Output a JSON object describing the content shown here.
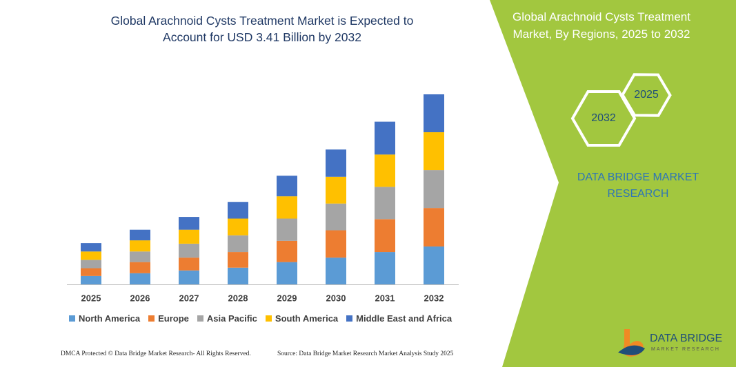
{
  "chart_data": {
    "type": "bar",
    "stacked": true,
    "title": "Global Arachnoid Cysts Treatment Market is Expected to Account for USD 3.41 Billion by 2032",
    "categories": [
      "2025",
      "2026",
      "2027",
      "2028",
      "2029",
      "2030",
      "2031",
      "2032"
    ],
    "series": [
      {
        "name": "North America",
        "color": "#5b9bd5",
        "values": [
          0.15,
          0.2,
          0.25,
          0.3,
          0.4,
          0.48,
          0.58,
          0.68
        ]
      },
      {
        "name": "Europe",
        "color": "#ed7d31",
        "values": [
          0.14,
          0.2,
          0.23,
          0.28,
          0.38,
          0.49,
          0.59,
          0.69
        ]
      },
      {
        "name": "Asia Pacific",
        "color": "#a5a5a5",
        "values": [
          0.15,
          0.19,
          0.25,
          0.3,
          0.4,
          0.48,
          0.58,
          0.68
        ]
      },
      {
        "name": "South America",
        "color": "#ffc000",
        "values": [
          0.15,
          0.2,
          0.25,
          0.3,
          0.4,
          0.48,
          0.58,
          0.68
        ]
      },
      {
        "name": "Middle East and Africa",
        "color": "#4472c4",
        "values": [
          0.15,
          0.19,
          0.23,
          0.3,
          0.37,
          0.49,
          0.59,
          0.68
        ]
      }
    ]
  },
  "panel": {
    "title": "Global Arachnoid Cysts Treatment Market, By Regions, 2025 to 2032",
    "hexagons": [
      "2032",
      "2025"
    ],
    "brand": "DATA BRIDGE MARKET RESEARCH"
  },
  "footer": {
    "dmca": "DMCA Protected © Data Bridge Market Research- All Rights Reserved.",
    "source": "Source: Data Bridge Market Research Market Analysis Study 2025"
  },
  "logo": {
    "name": "DATA BRIDGE",
    "tagline": "MARKET RESEARCH"
  }
}
